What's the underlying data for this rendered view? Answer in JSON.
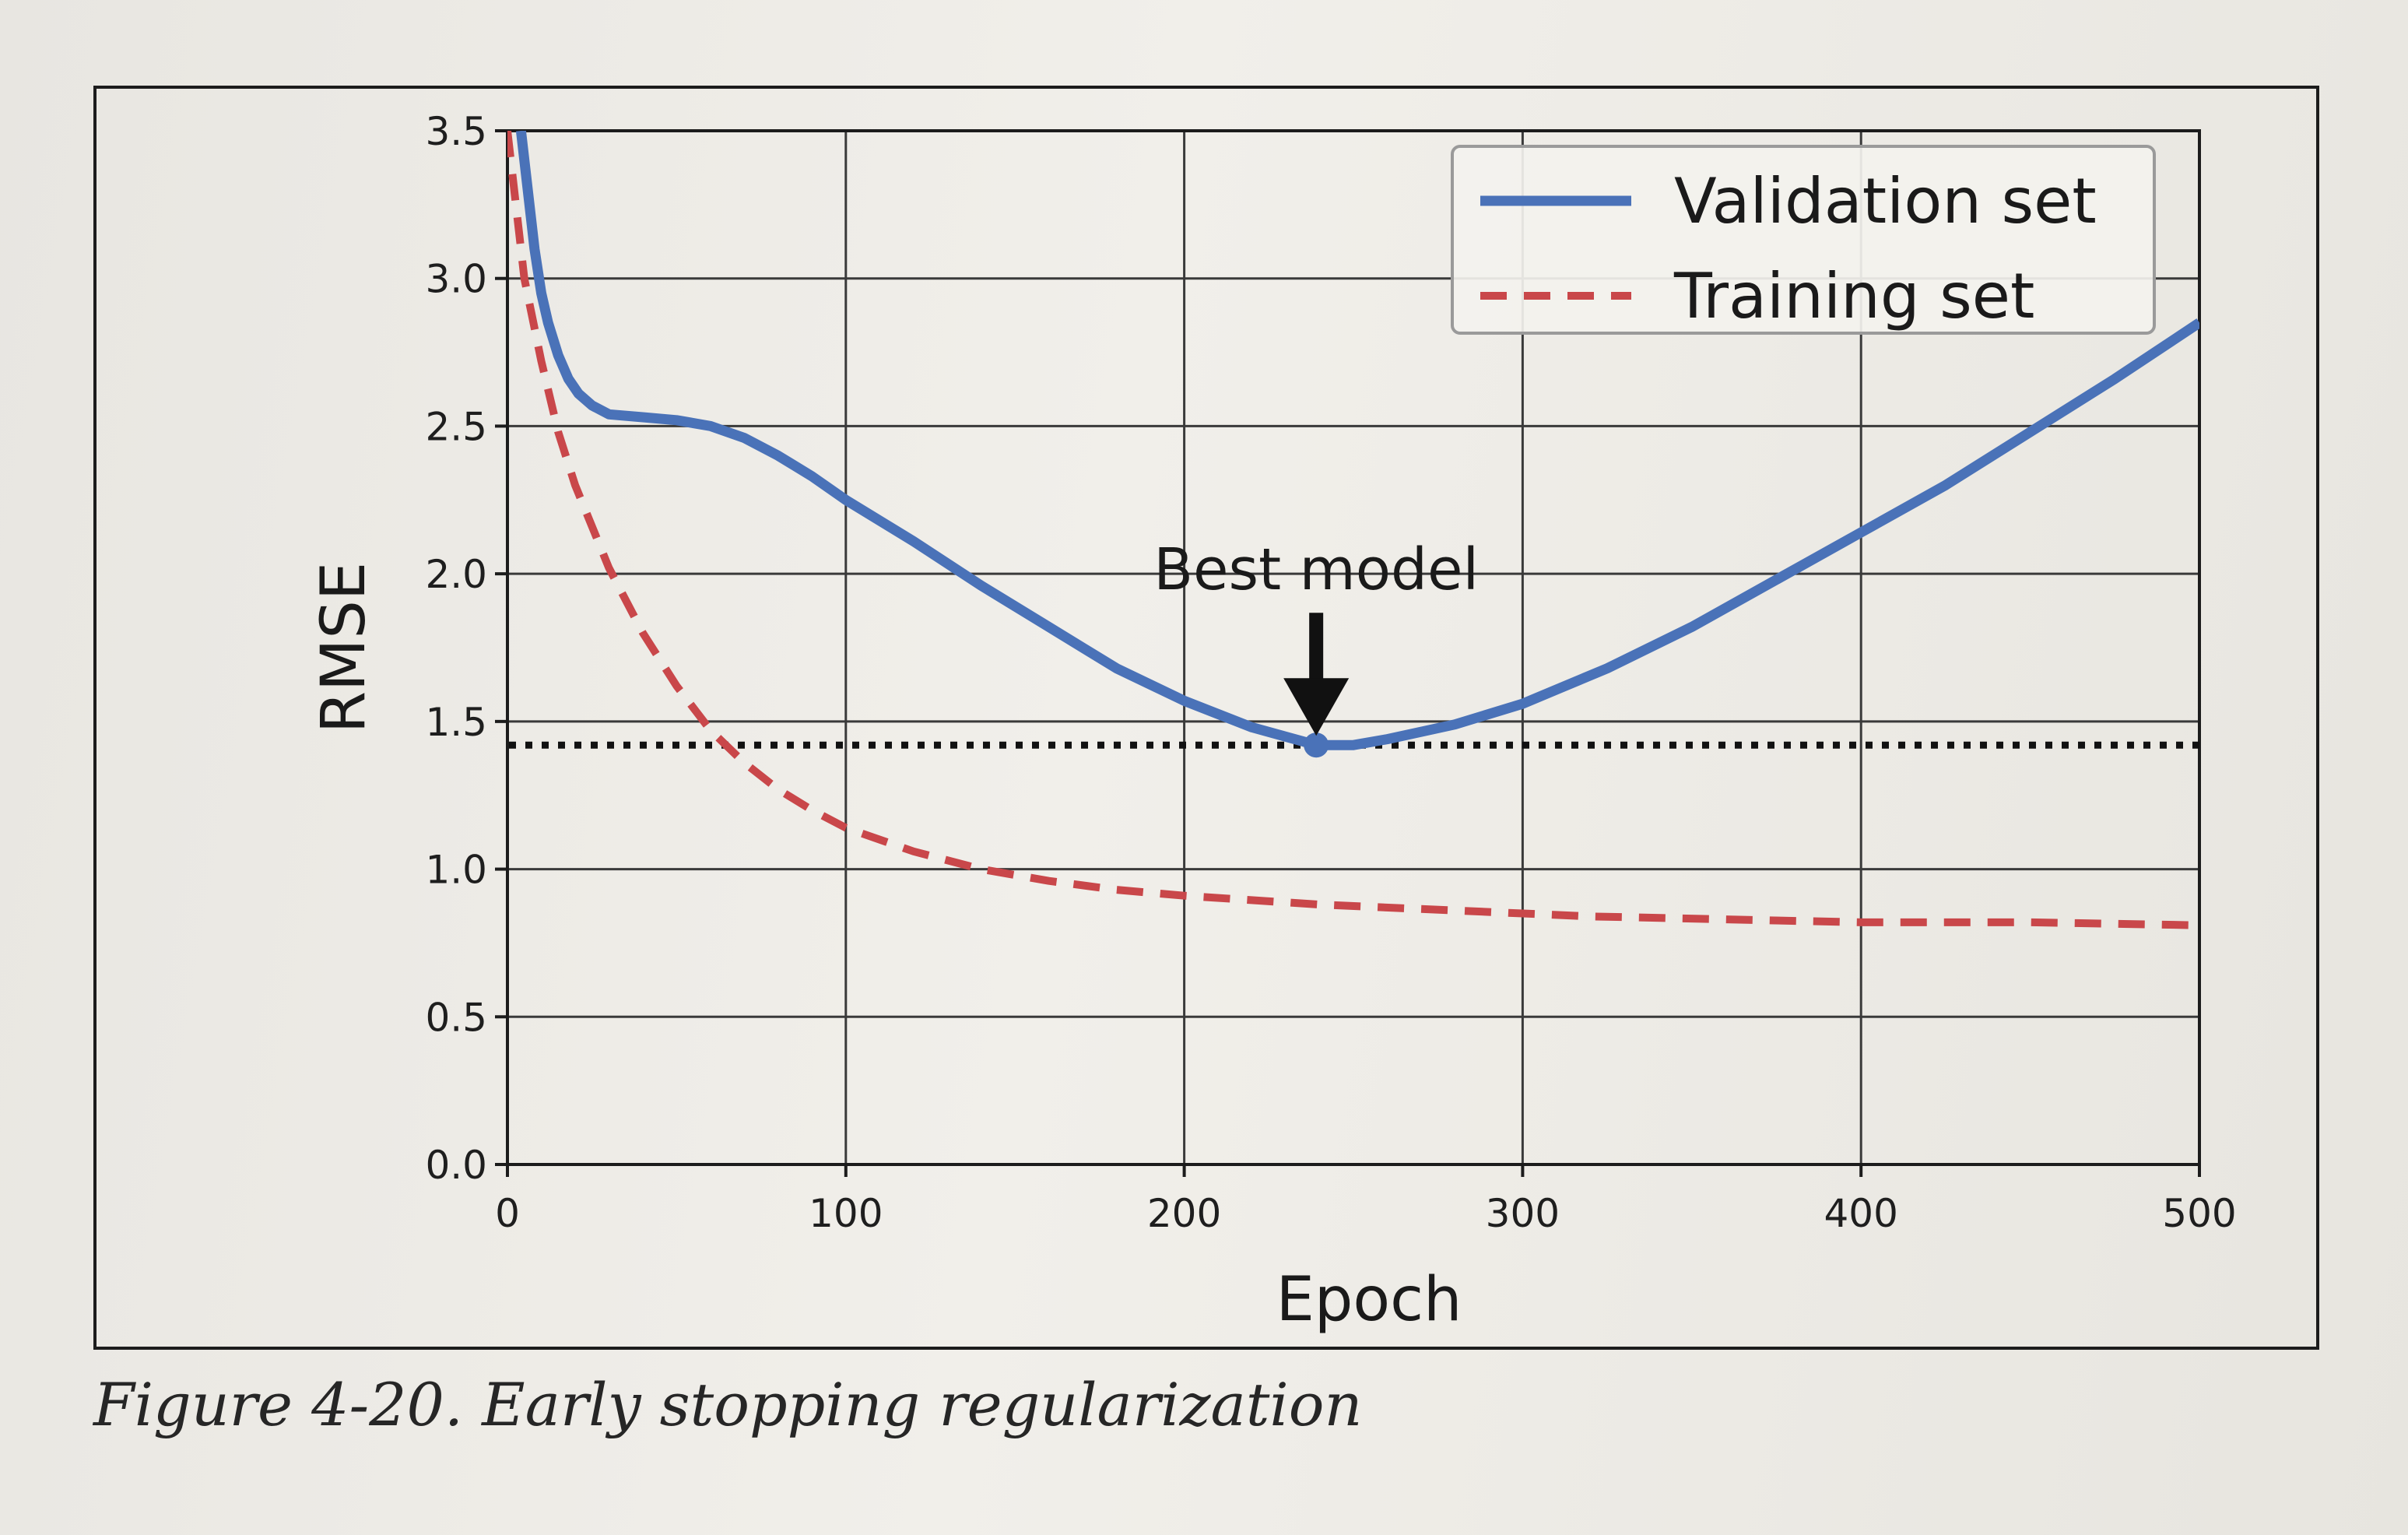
{
  "chart_data": {
    "type": "line",
    "title": "",
    "xlabel": "Epoch",
    "ylabel": "RMSE",
    "xlim": [
      0,
      500
    ],
    "ylim": [
      0,
      3.5
    ],
    "xticks": [
      0,
      100,
      200,
      300,
      400,
      500
    ],
    "yticks": [
      0.0,
      0.5,
      1.0,
      1.5,
      2.0,
      2.5,
      3.0,
      3.5
    ],
    "ytick_labels": [
      "0.0",
      "0.5",
      "1.0",
      "1.5",
      "2.0",
      "2.5",
      "3.0",
      "3.5"
    ],
    "grid": true,
    "legend_position": "top-right",
    "series": [
      {
        "name": "Validation set",
        "style": "solid",
        "color": "#4a72b8",
        "x": [
          4,
          6,
          8,
          10,
          12,
          15,
          18,
          21,
          25,
          30,
          40,
          50,
          60,
          70,
          80,
          90,
          100,
          120,
          140,
          160,
          180,
          200,
          220,
          239,
          250,
          260,
          280,
          300,
          325,
          350,
          375,
          400,
          425,
          450,
          475,
          500
        ],
        "y": [
          3.5,
          3.3,
          3.1,
          2.95,
          2.85,
          2.74,
          2.66,
          2.61,
          2.57,
          2.54,
          2.53,
          2.52,
          2.5,
          2.46,
          2.4,
          2.33,
          2.25,
          2.11,
          1.96,
          1.82,
          1.68,
          1.57,
          1.48,
          1.42,
          1.42,
          1.44,
          1.49,
          1.56,
          1.68,
          1.82,
          1.98,
          2.14,
          2.3,
          2.48,
          2.66,
          2.85
        ]
      },
      {
        "name": "Training set",
        "style": "dashed",
        "color": "#c9474a",
        "x": [
          0,
          5,
          10,
          15,
          20,
          30,
          40,
          50,
          60,
          70,
          80,
          90,
          100,
          120,
          140,
          160,
          180,
          200,
          240,
          280,
          320,
          360,
          400,
          450,
          500
        ],
        "y": [
          3.5,
          3.0,
          2.72,
          2.48,
          2.3,
          2.02,
          1.8,
          1.62,
          1.47,
          1.36,
          1.27,
          1.2,
          1.14,
          1.06,
          1.0,
          0.96,
          0.93,
          0.91,
          0.88,
          0.86,
          0.84,
          0.83,
          0.82,
          0.82,
          0.81
        ]
      }
    ],
    "reference_line": {
      "style": "dotted",
      "color": "#111111",
      "y": 1.42
    },
    "annotations": [
      {
        "text": "Best model",
        "x": 239,
        "y": 1.42,
        "arrow": true
      }
    ]
  },
  "caption": "Figure 4-20. Early stopping regularization"
}
